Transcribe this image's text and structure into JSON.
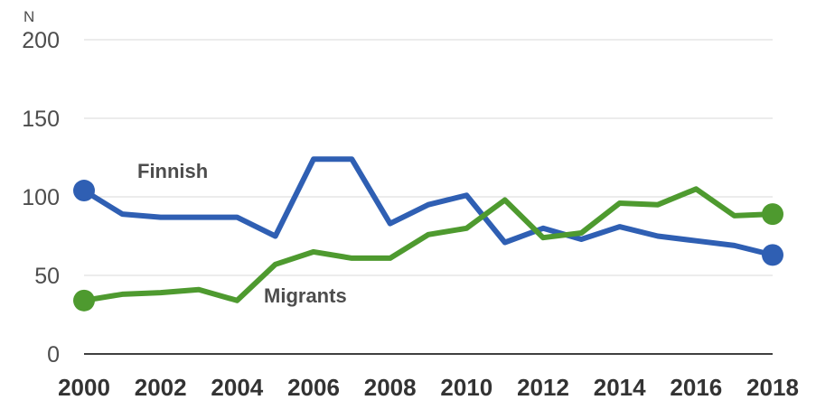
{
  "chart_data": {
    "type": "line",
    "ylabel": "N",
    "ylim": [
      0,
      200
    ],
    "yticks": [
      "0",
      "50",
      "100",
      "150",
      "200"
    ],
    "x": [
      2000,
      2001,
      2002,
      2003,
      2004,
      2005,
      2006,
      2007,
      2008,
      2009,
      2010,
      2011,
      2012,
      2013,
      2014,
      2015,
      2016,
      2017,
      2018
    ],
    "xticks": [
      "2000",
      "2002",
      "2004",
      "2006",
      "2008",
      "2010",
      "2012",
      "2014",
      "2016",
      "2018"
    ],
    "grid": true,
    "series": [
      {
        "name": "Finnish",
        "color": "#2f5fb3",
        "values": [
          104,
          89,
          87,
          87,
          87,
          75,
          124,
          124,
          83,
          95,
          101,
          71,
          80,
          73,
          81,
          75,
          72,
          69,
          63
        ]
      },
      {
        "name": "Migrants",
        "color": "#4e9a2f",
        "values": [
          34,
          38,
          39,
          41,
          34,
          57,
          65,
          61,
          61,
          76,
          80,
          98,
          74,
          77,
          96,
          95,
          105,
          88,
          89
        ]
      }
    ]
  }
}
